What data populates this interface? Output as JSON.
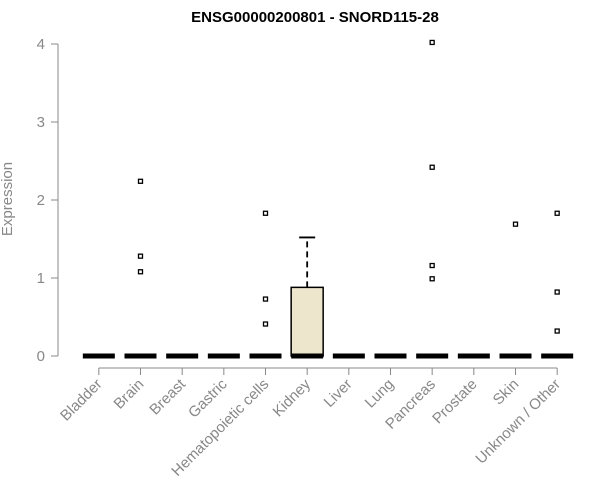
{
  "chart_data": {
    "type": "box",
    "title": "ENSG00000200801 - SNORD115-28",
    "xlabel": "",
    "ylabel": "Expression",
    "ylim": [
      0,
      4
    ],
    "yticks": [
      0,
      1,
      2,
      3,
      4
    ],
    "categories": [
      "Bladder",
      "Brain",
      "Breast",
      "Gastric",
      "Hematopoietic cells",
      "Kidney",
      "Liver",
      "Lung",
      "Pancreas",
      "Prostate",
      "Skin",
      "Unknown / Other"
    ],
    "boxes": [
      {
        "category": "Bladder",
        "q1": 0,
        "median": 0,
        "q3": 0,
        "whisker_low": 0,
        "whisker_high": 0,
        "outliers": []
      },
      {
        "category": "Brain",
        "q1": 0,
        "median": 0,
        "q3": 0,
        "whisker_low": 0,
        "whisker_high": 0,
        "outliers": [
          2.24,
          1.28,
          1.08
        ]
      },
      {
        "category": "Breast",
        "q1": 0,
        "median": 0,
        "q3": 0,
        "whisker_low": 0,
        "whisker_high": 0,
        "outliers": []
      },
      {
        "category": "Gastric",
        "q1": 0,
        "median": 0,
        "q3": 0,
        "whisker_low": 0,
        "whisker_high": 0,
        "outliers": []
      },
      {
        "category": "Hematopoietic cells",
        "q1": 0,
        "median": 0,
        "q3": 0,
        "whisker_low": 0,
        "whisker_high": 0,
        "outliers": [
          1.83,
          0.73,
          0.41
        ]
      },
      {
        "category": "Kidney",
        "q1": 0,
        "median": 0,
        "q3": 0.88,
        "whisker_low": 0,
        "whisker_high": 1.52,
        "outliers": [],
        "fill": "#ede6cc"
      },
      {
        "category": "Liver",
        "q1": 0,
        "median": 0,
        "q3": 0,
        "whisker_low": 0,
        "whisker_high": 0,
        "outliers": []
      },
      {
        "category": "Lung",
        "q1": 0,
        "median": 0,
        "q3": 0,
        "whisker_low": 0,
        "whisker_high": 0,
        "outliers": []
      },
      {
        "category": "Pancreas",
        "q1": 0,
        "median": 0,
        "q3": 0,
        "whisker_low": 0,
        "whisker_high": 0,
        "outliers": [
          4.02,
          2.42,
          1.16,
          0.99
        ]
      },
      {
        "category": "Prostate",
        "q1": 0,
        "median": 0,
        "q3": 0,
        "whisker_low": 0,
        "whisker_high": 0,
        "outliers": []
      },
      {
        "category": "Skin",
        "q1": 0,
        "median": 0,
        "q3": 0,
        "whisker_low": 0,
        "whisker_high": 0,
        "outliers": [
          1.69
        ]
      },
      {
        "category": "Unknown / Other",
        "q1": 0,
        "median": 0,
        "q3": 0,
        "whisker_low": 0,
        "whisker_high": 0,
        "outliers": [
          1.83,
          0.82,
          0.32
        ]
      }
    ],
    "grid": false,
    "colors": {
      "axis": "#888888",
      "box_fill": "#ede6cc",
      "box_stroke": "#000000"
    }
  }
}
